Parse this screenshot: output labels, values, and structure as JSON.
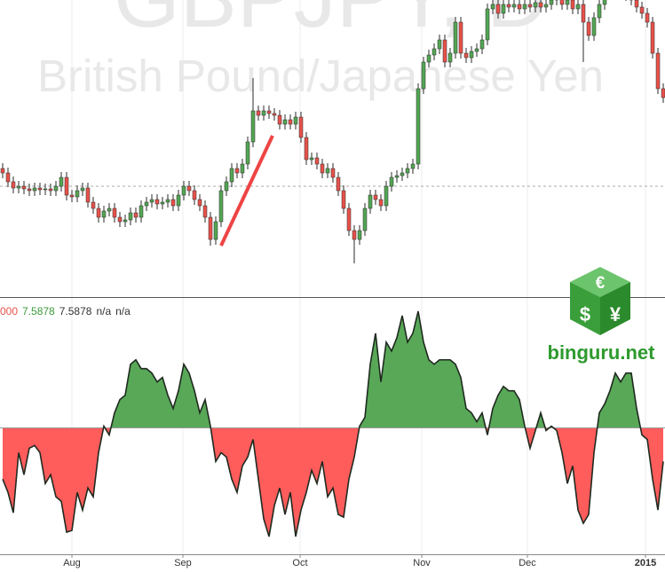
{
  "chart_data": [
    {
      "type": "candlestick",
      "title": "GBPJPY, D",
      "subtitle": "British Pound/Japanese Yen",
      "up_color": "#53a653",
      "down_color": "#e8514a",
      "wick_color": "#2b2b2b",
      "xlim": [
        -0.5,
        124.33
      ],
      "ylim": [
        170.25,
        187
      ],
      "price_line": 176.5,
      "open": [
        177.5,
        177.25,
        176.75,
        176.4,
        176.5,
        176.35,
        176.25,
        176.4,
        176.3,
        176.35,
        176.25,
        176.5,
        177,
        176,
        175.9,
        176.25,
        176.4,
        175.6,
        175.25,
        174.75,
        175.1,
        175.25,
        174.75,
        174.5,
        174.6,
        175,
        174.75,
        175.4,
        175.6,
        175.75,
        175.5,
        175.6,
        175.75,
        175.4,
        176,
        176.5,
        176.25,
        175.75,
        175.4,
        174.75,
        173.5,
        174.5,
        176.25,
        176.75,
        177.5,
        177.25,
        177.75,
        179,
        180.75,
        180.5,
        180.75,
        180.6,
        180.5,
        180,
        180.25,
        180,
        180.4,
        179.25,
        178,
        178.1,
        177.75,
        177.25,
        177.5,
        177,
        176.25,
        175.25,
        174,
        173.5,
        174,
        175.25,
        176,
        175.75,
        175.4,
        176.5,
        177,
        177.1,
        177.25,
        177.5,
        177.75,
        182,
        183.5,
        183.9,
        184.25,
        184.75,
        183.5,
        184,
        185.75,
        184,
        183.75,
        184.1,
        184.25,
        184.75,
        186.5,
        186.75,
        186.25,
        186.75,
        186.6,
        186.75,
        186.5,
        186.75,
        186.6,
        186.85,
        186.6,
        186.75,
        187,
        187.25,
        186.75,
        187,
        186.5,
        186.75,
        185.75,
        185,
        186,
        186.75,
        187.5,
        187.75,
        187.5,
        187.6,
        187.25,
        187,
        186.6,
        186.25,
        185.75,
        184,
        182
      ],
      "high": [
        177.8,
        177.55,
        177.05,
        176.8,
        176.8,
        176.65,
        176.7,
        176.7,
        176.65,
        176.65,
        176.8,
        177.3,
        177.3,
        176.3,
        176.55,
        176.7,
        176.7,
        175.9,
        175.55,
        175.4,
        175.55,
        175.55,
        175.05,
        174.9,
        175.3,
        175.3,
        175.7,
        175.9,
        176.05,
        176.05,
        175.9,
        176.05,
        176.05,
        176.3,
        176.8,
        176.8,
        176.55,
        176.05,
        175.7,
        175.05,
        174.8,
        176.55,
        177.05,
        177.8,
        177.8,
        178.05,
        179.3,
        182.6,
        181.05,
        181.05,
        181.05,
        180.9,
        180.8,
        180.55,
        180.55,
        180.7,
        180.7,
        179.55,
        178.4,
        178.4,
        178.05,
        177.8,
        177.8,
        177.3,
        176.55,
        175.55,
        174.3,
        174.3,
        175.55,
        176.3,
        176.3,
        176.05,
        176.8,
        177.3,
        177.4,
        177.55,
        177.8,
        178.05,
        182.3,
        183.8,
        184.2,
        184.55,
        185.05,
        185.05,
        184.3,
        186.05,
        186.05,
        184.3,
        184.4,
        184.55,
        185.05,
        186.8,
        187.05,
        187.05,
        187.05,
        187.05,
        187.05,
        187.05,
        187.05,
        187.05,
        187.15,
        187.15,
        187.05,
        187.3,
        187.55,
        187.55,
        187.3,
        187.3,
        187.05,
        187.05,
        186.05,
        186.3,
        187.05,
        187.8,
        188.05,
        188.05,
        187.9,
        187.9,
        187.55,
        187.3,
        186.9,
        186.55,
        186.05,
        184.3,
        182.3
      ],
      "low": [
        176.95,
        176.45,
        176.1,
        176.1,
        176.05,
        175.95,
        175.95,
        176,
        176,
        175.95,
        175.95,
        176.2,
        175.7,
        175.6,
        175.6,
        175.95,
        175.3,
        174.95,
        174.45,
        174.45,
        174.8,
        174.45,
        174.2,
        174.2,
        174.3,
        174.45,
        174.45,
        175.1,
        175.3,
        175.2,
        175.2,
        175.3,
        175.1,
        175.1,
        175.7,
        175.95,
        175.45,
        175.1,
        174.45,
        173.15,
        173.2,
        174.2,
        175.95,
        176.45,
        176.95,
        176.95,
        177.45,
        178.7,
        180.2,
        180.2,
        180.3,
        180.2,
        179.7,
        179.7,
        179.7,
        179.7,
        178.95,
        177.7,
        177.7,
        177.45,
        176.95,
        176.95,
        176.7,
        175.95,
        174.95,
        173.7,
        172.15,
        173.2,
        173.7,
        174.95,
        175.45,
        175.1,
        175.1,
        176.2,
        176.7,
        176.8,
        176.95,
        177.2,
        177.45,
        181.7,
        183.2,
        183.6,
        183.95,
        183.2,
        183.2,
        183.7,
        183.7,
        183.45,
        183.45,
        183.8,
        183.95,
        184.45,
        186.2,
        185.95,
        185.95,
        186.3,
        186.3,
        186.2,
        186.2,
        186.3,
        186.3,
        186.3,
        186.3,
        186.45,
        186.7,
        186.45,
        186.45,
        186.2,
        186.2,
        183.5,
        184.7,
        184.7,
        185.7,
        186.45,
        187.2,
        187.2,
        187.2,
        186.95,
        186.7,
        186.3,
        185.95,
        185.45,
        183.7,
        181.7,
        181.2
      ],
      "close": [
        177.25,
        176.75,
        176.4,
        176.5,
        176.35,
        176.25,
        176.4,
        176.3,
        176.35,
        176.25,
        176.5,
        177,
        176,
        175.9,
        176.25,
        176.4,
        175.6,
        175.25,
        174.75,
        175.1,
        175.25,
        174.75,
        174.5,
        174.6,
        175,
        174.75,
        175.4,
        175.6,
        175.75,
        175.5,
        175.6,
        175.75,
        175.4,
        176,
        176.5,
        176.25,
        175.75,
        175.4,
        174.75,
        173.5,
        174.5,
        176.25,
        176.75,
        177.5,
        177.25,
        177.75,
        179,
        180.75,
        180.5,
        180.75,
        180.6,
        180.5,
        180,
        180.25,
        180,
        180.4,
        179.25,
        178,
        178.1,
        177.75,
        177.25,
        177.5,
        177,
        176.25,
        175.25,
        174,
        173.5,
        174,
        175.25,
        176,
        175.75,
        175.4,
        176.5,
        177,
        177.1,
        177.25,
        177.5,
        177.75,
        182,
        183.5,
        183.9,
        184.25,
        184.75,
        183.5,
        184,
        185.75,
        184,
        183.75,
        184.1,
        184.25,
        184.75,
        186.5,
        186.75,
        186.25,
        186.75,
        186.6,
        186.75,
        186.5,
        186.75,
        186.6,
        186.85,
        186.6,
        186.75,
        187,
        187.25,
        186.75,
        187,
        186.5,
        186.75,
        185.75,
        185,
        186,
        186.75,
        187.5,
        187.75,
        187.5,
        187.6,
        187.25,
        187,
        186.6,
        186.25,
        185.75,
        184,
        182,
        181.5
      ]
    },
    {
      "type": "area",
      "legend": [
        "000",
        "7.5878",
        "7.5878",
        "n/a",
        "n/a"
      ],
      "legend_colors": [
        "#e8514a",
        "#3a9a3a",
        "#333333",
        "#333333",
        "#333333"
      ],
      "positive_color": "#58a858",
      "negative_color": "#ff5c5c",
      "line_color": "#1f2a1f",
      "xlim": [
        -0.5,
        124.33
      ],
      "ylim": [
        -14.3,
        14.7
      ],
      "xticks": [
        {
          "value": 13,
          "label": "Aug"
        },
        {
          "value": 33.83,
          "label": "Sep"
        },
        {
          "value": 55.83,
          "label": "Oct"
        },
        {
          "value": 78.67,
          "label": "Nov"
        },
        {
          "value": 98.5,
          "label": "Dec"
        },
        {
          "value": 120.67,
          "label": "2015"
        }
      ],
      "grid": true,
      "values": [
        -5.8,
        -7.3,
        -9.6,
        -2.8,
        -5.3,
        -2.3,
        -2,
        -2.8,
        -6.3,
        -5.3,
        -7.8,
        -8.3,
        -11.8,
        -11.6,
        -7.3,
        -9.3,
        -6.8,
        -7.8,
        -2.8,
        0.2,
        -0.8,
        1.7,
        3.2,
        3.7,
        7.2,
        7.7,
        6.7,
        6.7,
        6.2,
        5.2,
        5.7,
        3.7,
        2.2,
        4.2,
        7.2,
        6.2,
        4.2,
        1.7,
        3.2,
        0.2,
        -3.8,
        -2.8,
        -3.3,
        -5.8,
        -7.3,
        -4.3,
        -3.3,
        -1.3,
        -5.8,
        -10.3,
        -12.3,
        -8.8,
        -6.8,
        -9.8,
        -7.3,
        -12.3,
        -9.3,
        -7.3,
        -4.8,
        -6.3,
        -3.8,
        -7.8,
        -6.8,
        -9.8,
        -10.1,
        -5.8,
        -3.3,
        0.2,
        1.2,
        7.2,
        10.7,
        5.2,
        9.7,
        8.7,
        10.2,
        12.7,
        9.7,
        10.7,
        13.2,
        9.7,
        7.7,
        7.2,
        7.7,
        7.7,
        7.7,
        7.2,
        5.7,
        2.2,
        1.7,
        0.7,
        1.7,
        -0.8,
        2.2,
        3.7,
        4.7,
        4.2,
        4.2,
        3.2,
        0.2,
        -2.3,
        -0.3,
        1.7,
        -0.3,
        0.2,
        -0.3,
        -2.8,
        -6.3,
        -4.3,
        -9.3,
        -10.8,
        -9.8,
        -2.8,
        1.7,
        2.7,
        4.2,
        6.2,
        5.2,
        6.2,
        6.2,
        2.2,
        -0.8,
        -1.3,
        -5.8,
        -9.3,
        -3.8
      ]
    }
  ],
  "logo": {
    "symbols": [
      "€",
      "$",
      "¥"
    ],
    "text": "binguru.net"
  }
}
